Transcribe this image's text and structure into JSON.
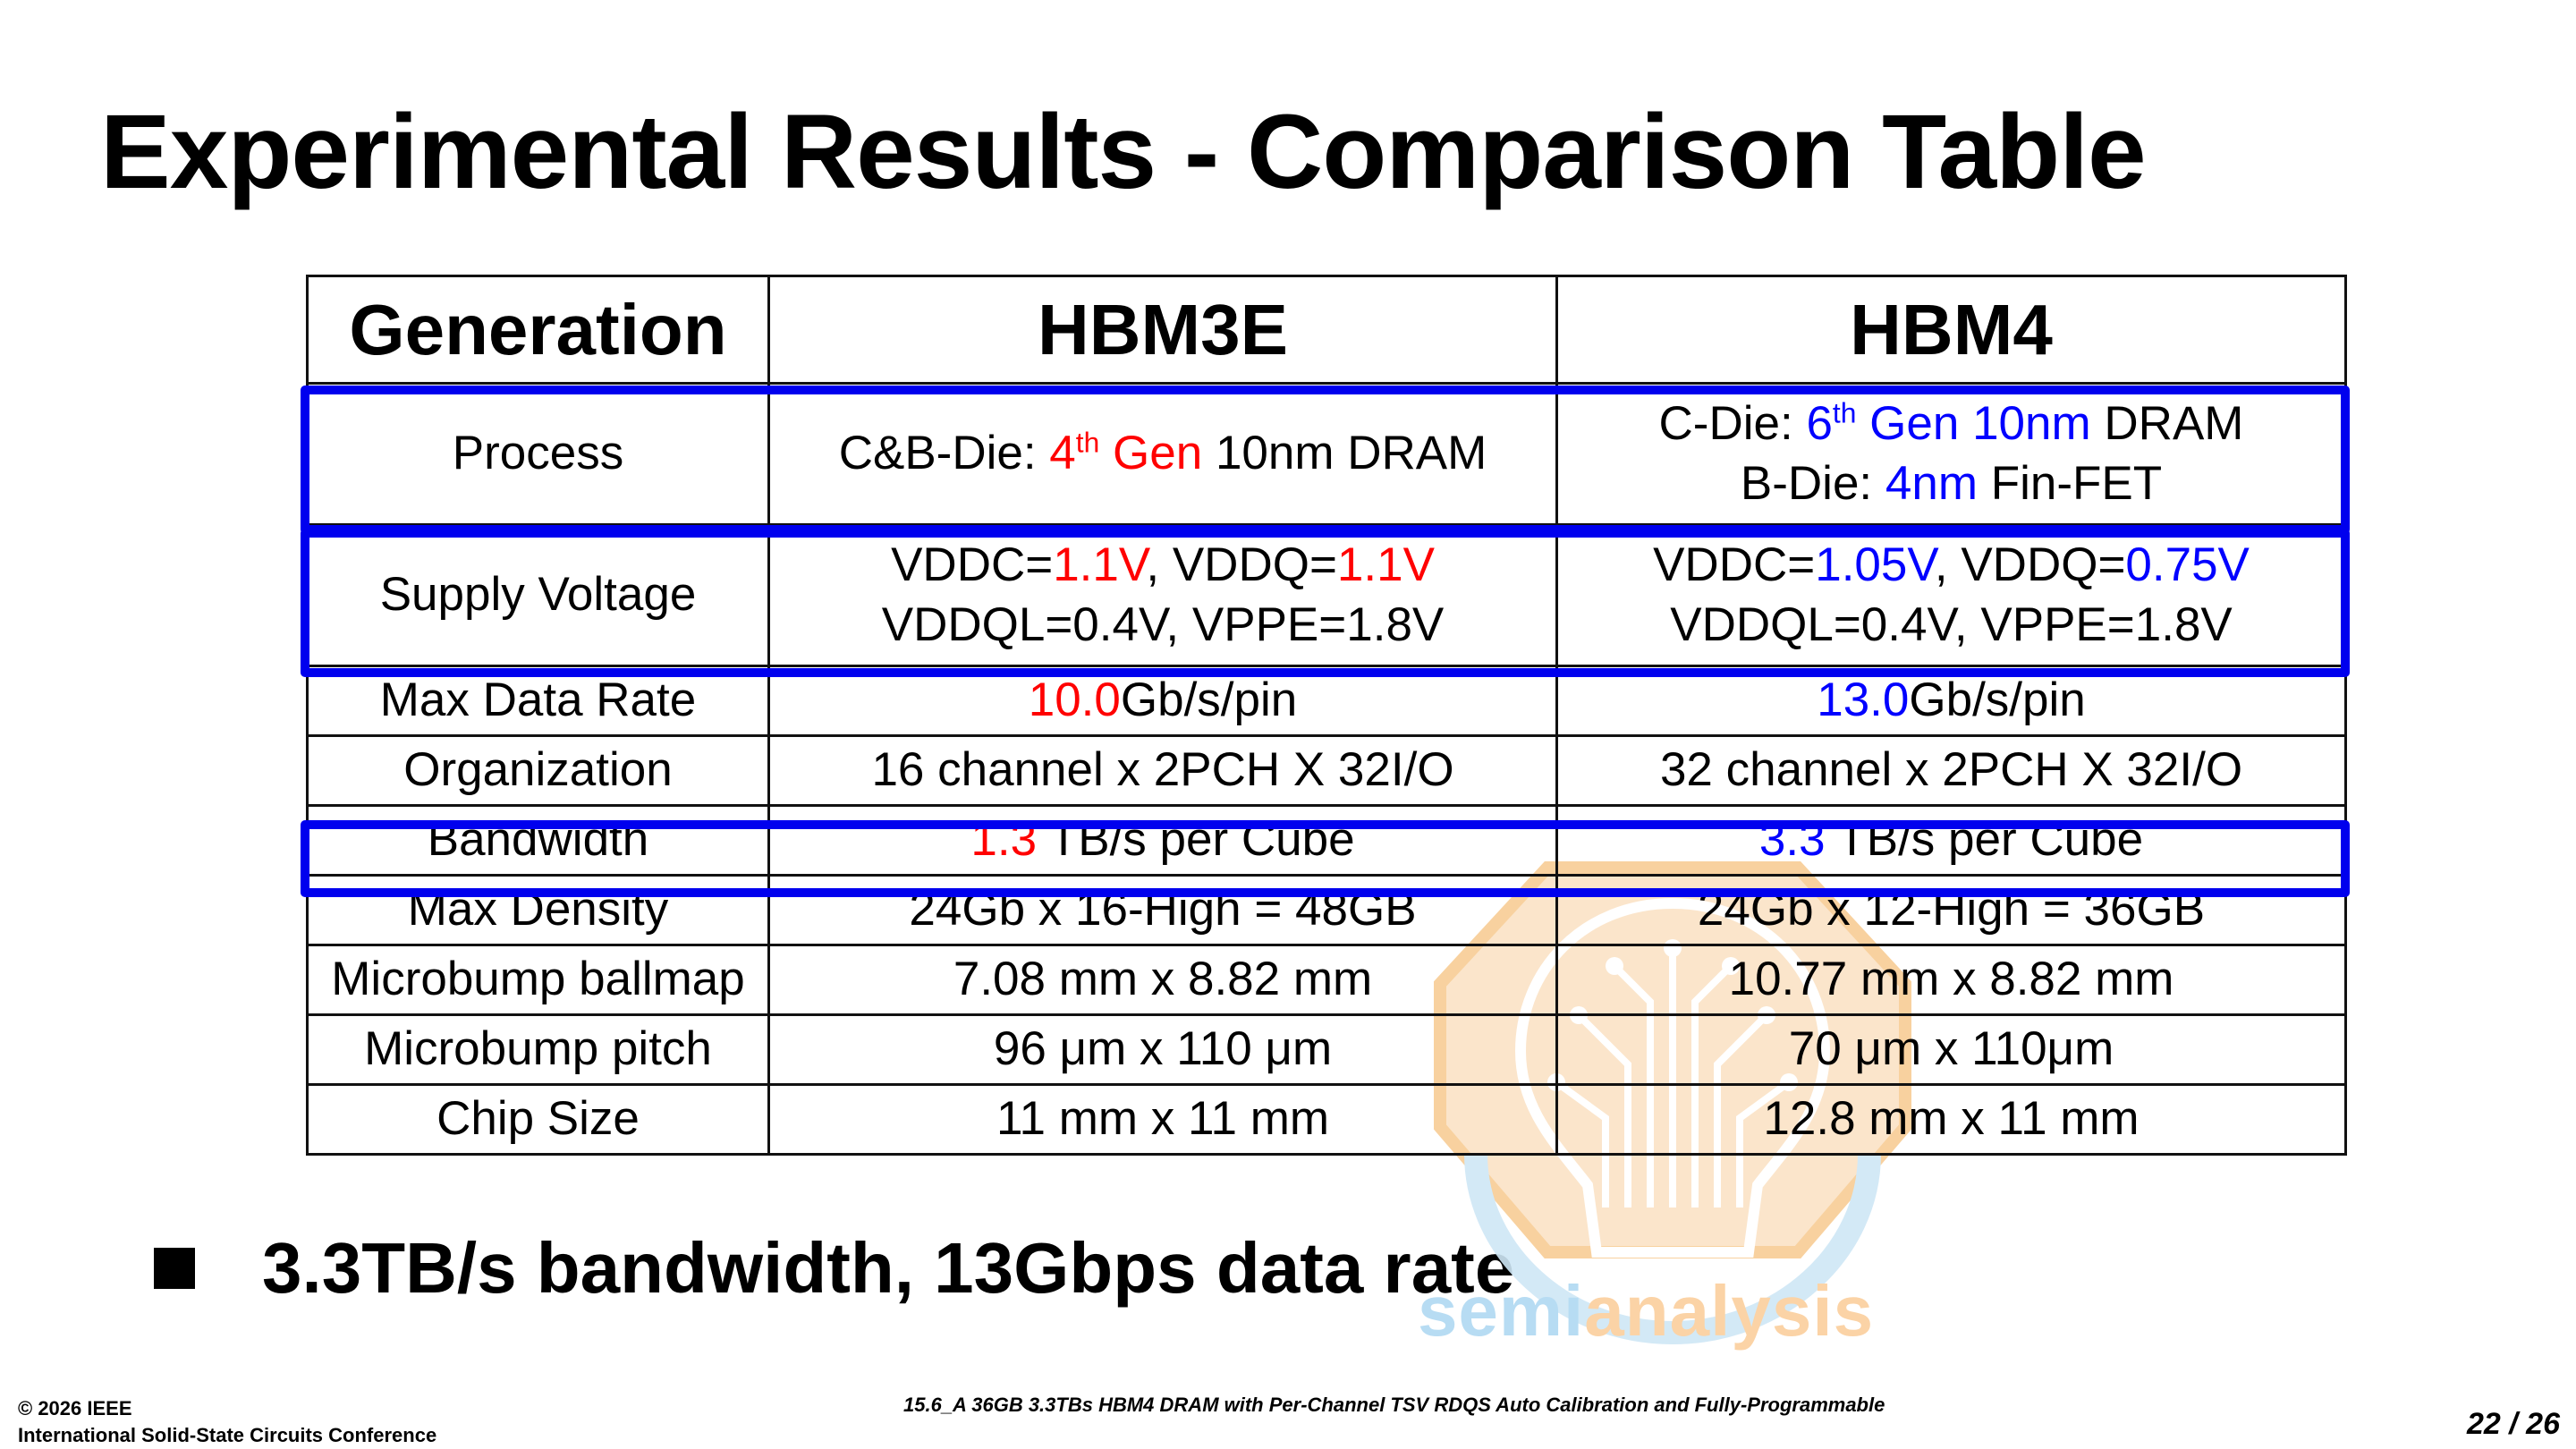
{
  "title": "Experimental Results - Comparison Table",
  "table": {
    "header": {
      "generation": "Generation",
      "col1": "HBM3E",
      "col2": "HBM4"
    },
    "rows": {
      "process": {
        "label": "Process",
        "hbm3e": {
          "prefix": "C&B-Die: ",
          "gen_num": "4",
          "gen_sup": "th",
          "gen_word": " Gen",
          "suffix": " 10nm DRAM"
        },
        "hbm4": {
          "line1_prefix": "C-Die: ",
          "line1_num": "6",
          "line1_sup": "th",
          "line1_hl": " Gen 10nm",
          "line1_suffix": " DRAM",
          "line2_prefix": "B-Die: ",
          "line2_hl": "4nm",
          "line2_suffix": " Fin-FET"
        }
      },
      "supply_voltage": {
        "label": "Supply Voltage",
        "hbm3e": {
          "vddc_label": "VDDC=",
          "vddc": "1.1V",
          "sep": ", ",
          "vddq_label": "VDDQ=",
          "vddq": "1.1V",
          "line2": "VDDQL=0.4V, VPPE=1.8V"
        },
        "hbm4": {
          "vddc_label": "VDDC=",
          "vddc": "1.05V",
          "sep": ", ",
          "vddq_label": "VDDQ=",
          "vddq": "0.75V",
          "line2": "VDDQL=0.4V, VPPE=1.8V"
        }
      },
      "max_data_rate": {
        "label": "Max Data Rate",
        "hbm3e": {
          "value": "10.0",
          "unit": "Gb/s/pin"
        },
        "hbm4": {
          "value": "13.0",
          "unit": "Gb/s/pin"
        }
      },
      "organization": {
        "label": "Organization",
        "hbm3e": "16 channel x 2PCH X 32I/O",
        "hbm4": "32 channel x 2PCH X 32I/O"
      },
      "bandwidth": {
        "label": "Bandwidth",
        "hbm3e": {
          "value": "1.3",
          "unit": " TB/s per Cube"
        },
        "hbm4": {
          "value": "3.3",
          "unit": " TB/s per Cube"
        }
      },
      "max_density": {
        "label": "Max Density",
        "hbm3e": "24Gb x 16-High = 48GB",
        "hbm4": "24Gb x 12-High = 36GB"
      },
      "microbump_ballmap": {
        "label": "Microbump ballmap",
        "hbm3e": "7.08 mm x 8.82 mm",
        "hbm4": "10.77 mm x 8.82 mm"
      },
      "microbump_pitch": {
        "label": "Microbump pitch",
        "hbm3e": "96 μm x 110 μm",
        "hbm4": "70 μm x 110μm"
      },
      "chip_size": {
        "label": "Chip Size",
        "hbm3e": "11 mm x 11 mm",
        "hbm4": "12.8 mm x 11 mm"
      }
    }
  },
  "bullet": "3.3TB/s bandwidth, 13Gbps data rate",
  "watermark": {
    "part1": "semi",
    "part2": "analysis"
  },
  "footer": {
    "copyright": "© 2026 IEEE",
    "conference": "International Solid-State Circuits Conference",
    "paper": "15.6_A 36GB 3.3TBs HBM4 DRAM with Per-Channel TSV RDQS Auto Calibration and Fully-Programmable",
    "page": "22 / 26"
  },
  "colors": {
    "highlight_old": "#ff0000",
    "highlight_new": "#0000ff",
    "box": "#0000ee"
  },
  "icons": {
    "watermark": "lightbulb-circuit-icon",
    "bullet": "square-bullet-icon"
  }
}
